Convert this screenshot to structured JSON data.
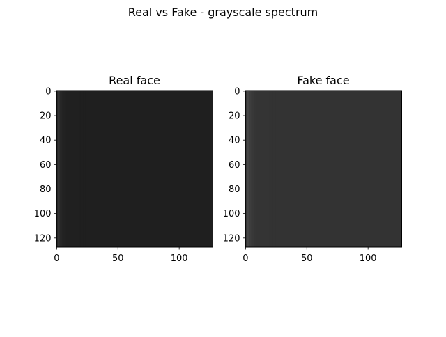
{
  "figure": {
    "suptitle": "Real vs Fake - grayscale spectrum"
  },
  "chart_data": [
    {
      "type": "heatmap",
      "title": "Real face",
      "xlabel": "",
      "ylabel": "",
      "xlim": [
        0,
        127
      ],
      "ylim": [
        127,
        0
      ],
      "xticks": [
        0,
        50,
        100
      ],
      "yticks": [
        0,
        20,
        40,
        60,
        80,
        100,
        120
      ],
      "grid": false,
      "colormap": "gray",
      "background_color": "#1f1f1f",
      "stripe_color": "#3a3a3a",
      "stripe_profile": [
        0.0,
        0.85,
        0.55,
        0.35,
        0.25,
        0.18,
        0.12,
        0.08,
        0.05,
        0.03
      ],
      "stripe_width_cols": 24
    },
    {
      "type": "heatmap",
      "title": "Fake face",
      "xlabel": "",
      "ylabel": "",
      "xlim": [
        0,
        127
      ],
      "ylim": [
        127,
        0
      ],
      "xticks": [
        0,
        50,
        100
      ],
      "yticks": [
        0,
        20,
        40,
        60,
        80,
        100,
        120
      ],
      "grid": false,
      "colormap": "gray",
      "background_color": "#333333",
      "stripe_color": "#555555",
      "stripe_profile": [
        0.0,
        0.75,
        0.55,
        0.4,
        0.3,
        0.22,
        0.15,
        0.1,
        0.06,
        0.03
      ],
      "stripe_width_cols": 26
    }
  ]
}
